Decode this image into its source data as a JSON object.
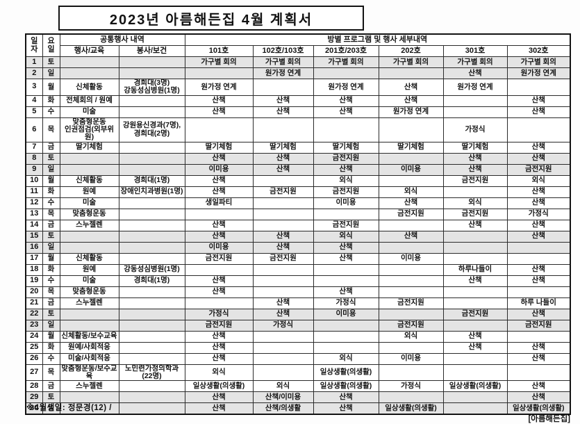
{
  "title": "2023년 아름해든집 4월 계획서",
  "colors": {
    "weekend_row_bg": "#e4e4e4",
    "text": "#121212"
  },
  "footer": {
    "birthday_note": "※4월생일: 정문경(12) /",
    "stamp": "[아름해든집]"
  },
  "table": {
    "headers": {
      "date": "일\n자",
      "day": "요\n일",
      "common_group": "공통행사 내역",
      "room_group": "방별 프로그램 및 행사 세부내역",
      "columns": [
        "행사/교육",
        "봉사/보건",
        "101호",
        "102호/103호",
        "201호/203호",
        "202호",
        "301호",
        "302호"
      ]
    },
    "rows": [
      {
        "date": "1",
        "day": "토",
        "weekend": true,
        "cells": [
          "",
          "",
          "가구별 회의",
          "가구별 회의",
          "가구별 회의",
          "가구별 회의",
          "가구별 회의",
          "가구별 회의"
        ]
      },
      {
        "date": "2",
        "day": "일",
        "weekend": true,
        "cells": [
          "",
          "",
          "",
          "원가정 연계",
          "",
          "",
          "산책",
          "원가정 연계"
        ]
      },
      {
        "date": "3",
        "day": "월",
        "weekend": false,
        "cells": [
          "신체활동",
          "경희대(3명)\n강동성심병원(1명)",
          "원가정 연계",
          "",
          "원가정 연계",
          "산책",
          "원가정 연계",
          ""
        ]
      },
      {
        "date": "4",
        "day": "화",
        "weekend": false,
        "cells": [
          "전체회의 / 원예",
          "",
          "산책",
          "산책",
          "산책",
          "산책",
          "",
          "산책"
        ]
      },
      {
        "date": "5",
        "day": "수",
        "weekend": false,
        "cells": [
          "미술",
          "",
          "산책",
          "산책",
          "산책",
          "원가정 연계",
          "",
          "산책"
        ]
      },
      {
        "date": "6",
        "day": "목",
        "weekend": false,
        "cells": [
          "맞춤형운동\n인권점검(외부위원)",
          "강원용신경과(7명),\n경희대(2명)",
          "",
          "",
          "",
          "",
          "가정식",
          ""
        ]
      },
      {
        "date": "7",
        "day": "금",
        "weekend": false,
        "cells": [
          "딸기체험",
          "",
          "딸기체험",
          "딸기체험",
          "딸기체험",
          "딸기체험",
          "딸기체험",
          "산책"
        ]
      },
      {
        "date": "8",
        "day": "토",
        "weekend": true,
        "cells": [
          "",
          "",
          "산책",
          "산책",
          "금전지원",
          "",
          "산책",
          "산책"
        ]
      },
      {
        "date": "9",
        "day": "일",
        "weekend": true,
        "cells": [
          "",
          "",
          "이미용",
          "산책",
          "산책",
          "이미용",
          "산책",
          "금전지원"
        ]
      },
      {
        "date": "10",
        "day": "월",
        "weekend": false,
        "cells": [
          "신체활동",
          "경희대(1명)",
          "산책",
          "",
          "외식",
          "",
          "금전지원",
          "외식"
        ]
      },
      {
        "date": "11",
        "day": "화",
        "weekend": false,
        "cells": [
          "원예",
          "장애인치과병원(1명)",
          "산책",
          "금전지원",
          "금전지원",
          "외식",
          "",
          "산책"
        ]
      },
      {
        "date": "12",
        "day": "수",
        "weekend": false,
        "cells": [
          "미술",
          "",
          "생일파티",
          "",
          "이미용",
          "산책",
          "외식",
          "산책"
        ]
      },
      {
        "date": "13",
        "day": "목",
        "weekend": false,
        "cells": [
          "맞춤형운동",
          "",
          "",
          "",
          "",
          "금전지원",
          "금전지원",
          "가정식"
        ]
      },
      {
        "date": "14",
        "day": "금",
        "weekend": false,
        "cells": [
          "스누젤렌",
          "",
          "산책",
          "",
          "금전지원",
          "",
          "산책",
          "산책"
        ]
      },
      {
        "date": "15",
        "day": "토",
        "weekend": true,
        "cells": [
          "",
          "",
          "산책",
          "산책",
          "외식",
          "산책",
          "",
          "산책"
        ]
      },
      {
        "date": "16",
        "day": "일",
        "weekend": true,
        "cells": [
          "",
          "",
          "이미용",
          "산책",
          "산책",
          "",
          "",
          ""
        ]
      },
      {
        "date": "17",
        "day": "월",
        "weekend": false,
        "cells": [
          "신체활동",
          "",
          "금전지원",
          "금전지원",
          "산책",
          "이미용",
          "",
          ""
        ]
      },
      {
        "date": "18",
        "day": "화",
        "weekend": false,
        "cells": [
          "원예",
          "강동성심병원(1명)",
          "",
          "",
          "",
          "",
          "하루나들이",
          "산책"
        ]
      },
      {
        "date": "19",
        "day": "수",
        "weekend": false,
        "cells": [
          "미술",
          "경희대(1명)",
          "산책",
          "",
          "",
          "",
          "산책",
          "산책"
        ]
      },
      {
        "date": "20",
        "day": "목",
        "weekend": false,
        "cells": [
          "맞춤형운동",
          "",
          "산책",
          "",
          "산책",
          "",
          "",
          ""
        ]
      },
      {
        "date": "21",
        "day": "금",
        "weekend": false,
        "cells": [
          "스누젤렌",
          "",
          "",
          "산책",
          "가정식",
          "금전지원",
          "",
          "하루 나들이"
        ]
      },
      {
        "date": "22",
        "day": "토",
        "weekend": true,
        "cells": [
          "",
          "",
          "가정식",
          "산책",
          "이미용",
          "",
          "금전지원",
          "산책"
        ]
      },
      {
        "date": "23",
        "day": "일",
        "weekend": true,
        "cells": [
          "",
          "",
          "금전지원",
          "가정식",
          "",
          "금전지원",
          "",
          "금전지원"
        ]
      },
      {
        "date": "24",
        "day": "월",
        "weekend": false,
        "cells": [
          "신체활동/보수교육",
          "",
          "산책",
          "",
          "",
          "외식",
          "산책",
          ""
        ]
      },
      {
        "date": "25",
        "day": "화",
        "weekend": false,
        "cells": [
          "원예/사회적응",
          "",
          "산책",
          "",
          "",
          "",
          "산책",
          "산책"
        ]
      },
      {
        "date": "26",
        "day": "수",
        "weekend": false,
        "cells": [
          "미술/사회적응",
          "",
          "산책",
          "",
          "외식",
          "이미용",
          "",
          "산책"
        ]
      },
      {
        "date": "27",
        "day": "목",
        "weekend": false,
        "cells": [
          "맞춤형운동/보수교육",
          "노민련가정의학과(22명)",
          "외식",
          "",
          "일상생활(의생활)",
          "",
          "",
          ""
        ]
      },
      {
        "date": "28",
        "day": "금",
        "weekend": false,
        "cells": [
          "스누젤렌",
          "",
          "일상생활(의생활)",
          "외식",
          "일상생활(의생활)",
          "가정식",
          "일상생활(의생활)",
          "산책"
        ]
      },
      {
        "date": "29",
        "day": "토",
        "weekend": true,
        "cells": [
          "",
          "",
          "산책",
          "산책/이미용",
          "산책",
          "",
          "",
          "산책"
        ]
      },
      {
        "date": "30",
        "day": "일",
        "weekend": true,
        "cells": [
          "",
          "",
          "산책",
          "산책/의생활",
          "산책",
          "일상생활(의생활)",
          "",
          "일상생활(의생활)"
        ]
      }
    ]
  }
}
